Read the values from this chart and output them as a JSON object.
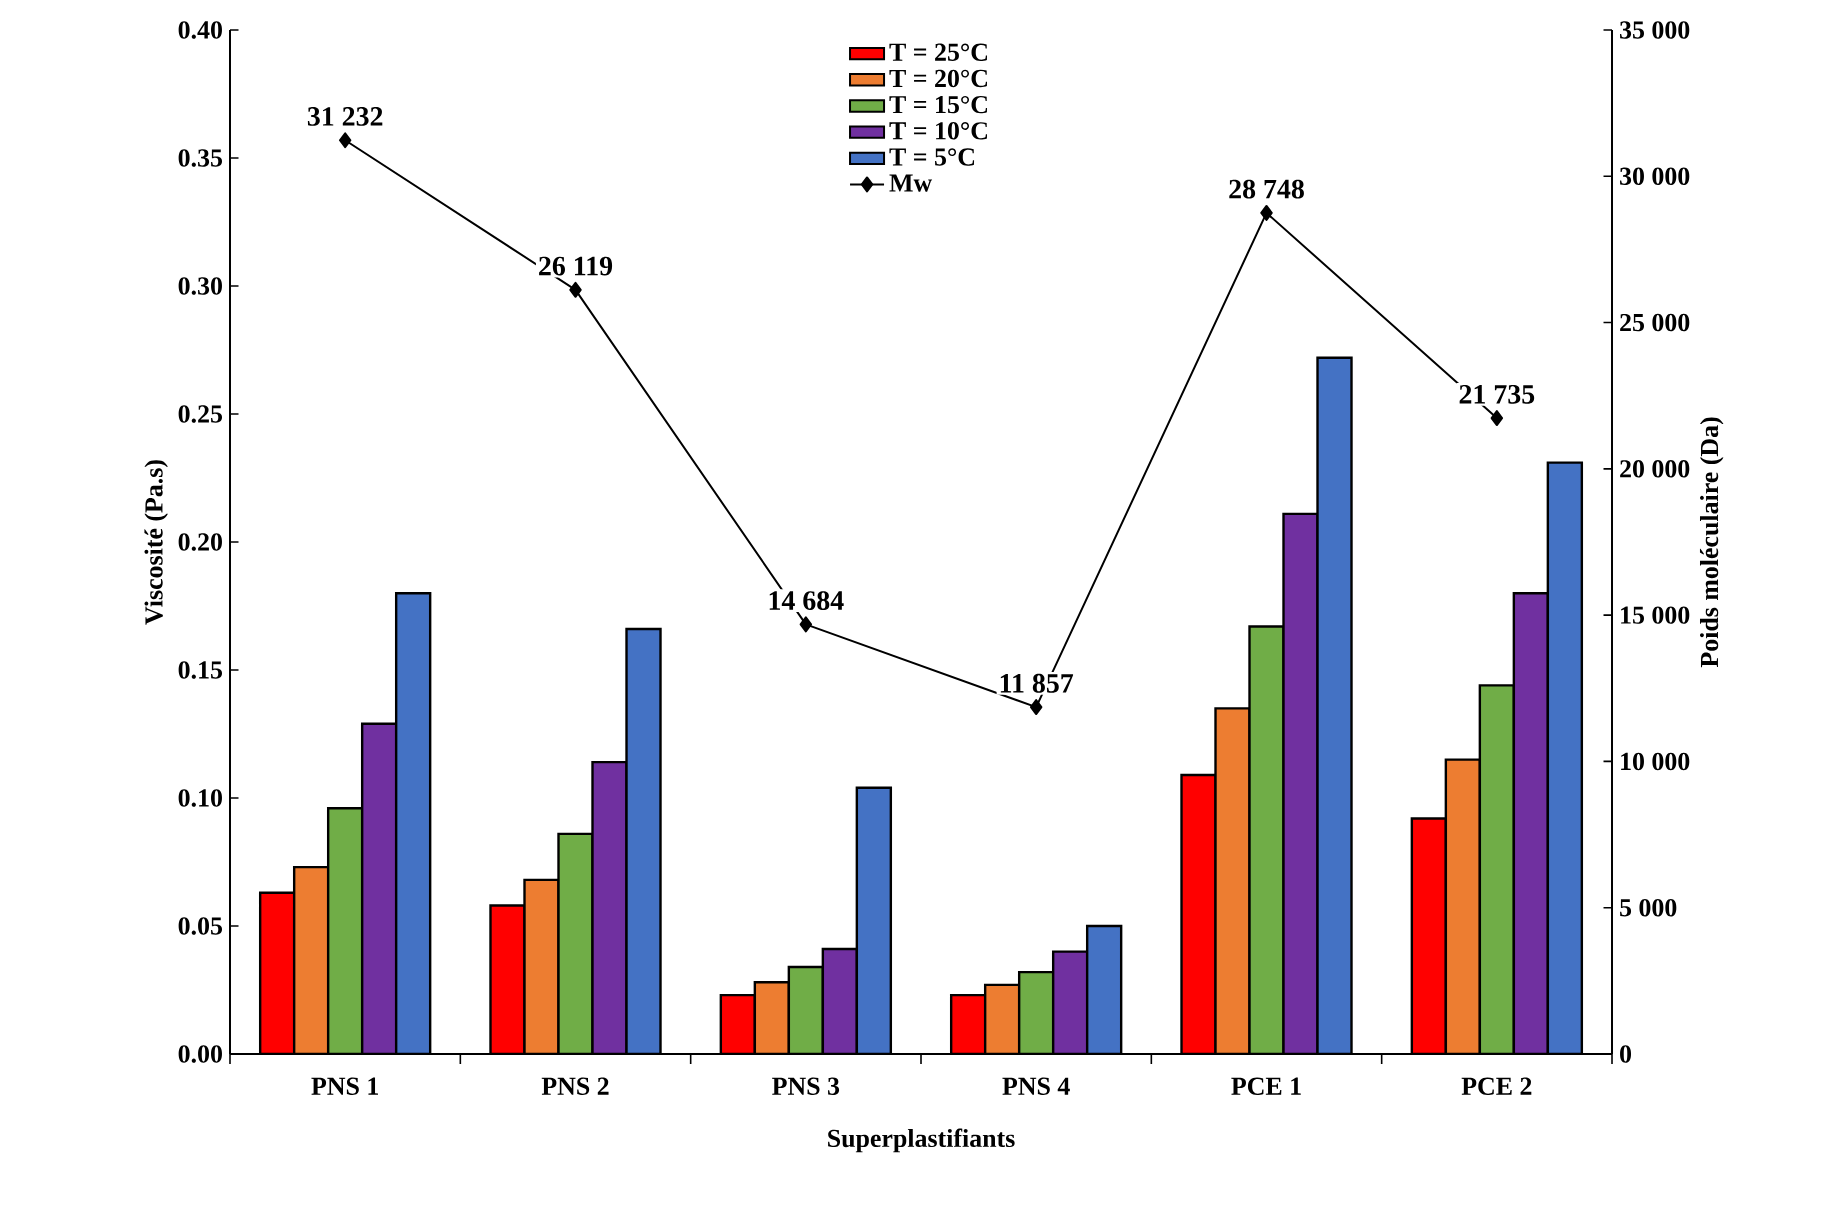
{
  "chart_data": {
    "type": "bar",
    "xlabel": "Superplastifiants",
    "ylabel": "Viscosité (Pa.s)",
    "y2label": "Poids moléculaire (Da)",
    "categories": [
      "PNS 1",
      "PNS 2",
      "PNS 3",
      "PNS 4",
      "PCE 1",
      "PCE 2"
    ],
    "series": [
      {
        "name": "T = 25°C",
        "color": "#ff0000",
        "values": [
          0.063,
          0.058,
          0.023,
          0.023,
          0.109,
          0.092
        ]
      },
      {
        "name": "T = 20°C",
        "color": "#ed7d31",
        "values": [
          0.073,
          0.068,
          0.028,
          0.027,
          0.135,
          0.115
        ]
      },
      {
        "name": "T = 15°C",
        "color": "#70ad47",
        "values": [
          0.096,
          0.086,
          0.034,
          0.032,
          0.167,
          0.144
        ]
      },
      {
        "name": "T = 10°C",
        "color": "#7030a0",
        "values": [
          0.129,
          0.114,
          0.041,
          0.04,
          0.211,
          0.18
        ]
      },
      {
        "name": "T = 5°C",
        "color": "#4472c4",
        "values": [
          0.18,
          0.166,
          0.104,
          0.05,
          0.272,
          0.231
        ]
      },
      {
        "name": "Mw",
        "type": "line",
        "axis": "y2",
        "color": "#000000",
        "marker": "diamond",
        "values": [
          31232,
          26119,
          14684,
          11857,
          28748,
          21735
        ],
        "value_labels": [
          "31 232",
          "26 119",
          "14 684",
          "11 857",
          "28 748",
          "21 735"
        ]
      }
    ],
    "ylim": [
      0,
      0.4
    ],
    "yticks": [
      {
        "value": 0,
        "label": "0.00"
      },
      {
        "value": 0.05,
        "label": "0.05"
      },
      {
        "value": 0.1,
        "label": "0.10"
      },
      {
        "value": 0.15,
        "label": "0.15"
      },
      {
        "value": 0.2,
        "label": "0.20"
      },
      {
        "value": 0.25,
        "label": "0.25"
      },
      {
        "value": 0.3,
        "label": "0.30"
      },
      {
        "value": 0.35,
        "label": "0.35"
      },
      {
        "value": 0.4,
        "label": "0.40"
      }
    ],
    "y2lim": [
      0,
      35000
    ],
    "y2ticks": [
      0,
      {
        "value": 5000,
        "label": "5 000"
      },
      {
        "value": 10000,
        "label": "10 000"
      },
      {
        "value": 15000,
        "label": "15 000"
      },
      {
        "value": 20000,
        "label": "20 000"
      },
      {
        "value": 25000,
        "label": "25 000"
      },
      {
        "value": 30000,
        "label": "30 000"
      },
      {
        "value": 35000,
        "label": "35 000"
      }
    ],
    "legend": "top"
  }
}
